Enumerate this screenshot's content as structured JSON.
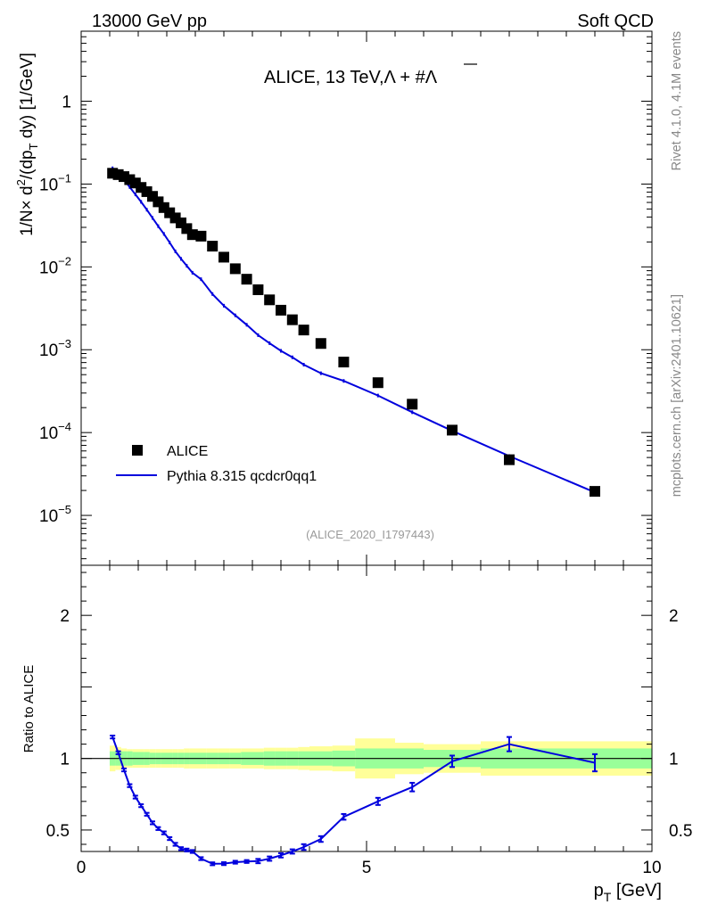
{
  "header": {
    "left": "13000 GeV pp",
    "right": "Soft QCD"
  },
  "side_labels": {
    "rivet": "Rivet 4.1.0,  4.1M events",
    "mcplots": "mcplots.cern.ch [arXiv:2401.10621]"
  },
  "colors": {
    "mc": "#0000dd",
    "data": "#000000",
    "band_inner": "#99ff99",
    "band_outer": "#ffff99"
  },
  "chart_data": {
    "type": "line",
    "title": "ALICE, 13 TeV,",
    "title_particles": "Λ + #Λ",
    "ylabel": "1/N × d²/(dp_T dy) [1/GeV]",
    "ylabel_parts": [
      "1/N",
      "×",
      " d",
      "2",
      "/(dp",
      "T",
      " dy) [1/GeV]"
    ],
    "ratio_ylabel": "Ratio to ALICE",
    "xlabel": "p_T [GeV]",
    "xlabel_parts": [
      "p",
      "T",
      " [GeV]"
    ],
    "analysis_id": "(ALICE_2020_I1797443)",
    "xlim": [
      0,
      10
    ],
    "ylim": [
      2.5e-06,
      7
    ],
    "ratio_ylim": [
      0.35,
      2.35
    ],
    "x_ticks": [
      "0",
      "5",
      "10"
    ],
    "y_ticks": [
      {
        "mant": "10",
        "exp": "−5",
        "v": 1e-05
      },
      {
        "mant": "10",
        "exp": "−4",
        "v": 0.0001
      },
      {
        "mant": "10",
        "exp": "−3",
        "v": 0.001
      },
      {
        "mant": "10",
        "exp": "−2",
        "v": 0.01
      },
      {
        "mant": "10",
        "exp": "−1",
        "v": 0.1
      },
      {
        "mant": "1",
        "exp": "",
        "v": 1
      }
    ],
    "ratio_ticks": [
      {
        "label": "0.5",
        "v": 0.5
      },
      {
        "label": "1",
        "v": 1
      },
      {
        "label": "2",
        "v": 2
      }
    ],
    "legend": [
      {
        "name": "ALICE",
        "kind": "data"
      },
      {
        "name": "Pythia 8.315 qcdcr0qq1",
        "kind": "mc"
      }
    ],
    "data": {
      "name": "ALICE",
      "x": [
        0.55,
        0.65,
        0.75,
        0.85,
        0.95,
        1.05,
        1.15,
        1.25,
        1.35,
        1.45,
        1.55,
        1.65,
        1.75,
        1.85,
        1.95,
        2.1,
        2.3,
        2.5,
        2.7,
        2.9,
        3.1,
        3.3,
        3.5,
        3.7,
        3.9,
        4.2,
        4.6,
        5.2,
        5.8,
        6.5,
        7.5,
        9.0
      ],
      "y": [
        0.135,
        0.13,
        0.123,
        0.113,
        0.103,
        0.091,
        0.081,
        0.071,
        0.061,
        0.052,
        0.045,
        0.039,
        0.034,
        0.029,
        0.0245,
        0.0235,
        0.0178,
        0.0131,
        0.0095,
        0.0071,
        0.0053,
        0.004,
        0.003,
        0.0023,
        0.00173,
        0.00119,
        0.00071,
        0.0004,
        0.00022,
        0.000107,
        4.7e-05,
        1.95e-05
      ]
    },
    "mc": {
      "name": "Pythia 8.315 qcdcr0qq1",
      "x": [
        0.55,
        0.65,
        0.75,
        0.85,
        0.95,
        1.05,
        1.15,
        1.25,
        1.35,
        1.45,
        1.55,
        1.65,
        1.75,
        1.85,
        1.95,
        2.1,
        2.3,
        2.5,
        2.7,
        2.9,
        3.1,
        3.3,
        3.5,
        3.7,
        3.9,
        4.2,
        4.6,
        5.2,
        5.8,
        6.5,
        7.5,
        9.0
      ],
      "y": [
        0.155,
        0.136,
        0.113,
        0.092,
        0.075,
        0.061,
        0.049,
        0.039,
        0.031,
        0.025,
        0.0197,
        0.0154,
        0.0125,
        0.0103,
        0.0085,
        0.0071,
        0.0047,
        0.0034,
        0.0026,
        0.002,
        0.0015,
        0.0012,
        0.00097,
        0.00081,
        0.00066,
        0.00052,
        0.00042,
        0.00028,
        0.000176,
        0.000105,
        5.2e-05,
        1.9e-05
      ]
    },
    "ratio": {
      "x": [
        0.55,
        0.65,
        0.75,
        0.85,
        0.95,
        1.05,
        1.15,
        1.25,
        1.35,
        1.45,
        1.55,
        1.65,
        1.75,
        1.85,
        1.95,
        2.1,
        2.3,
        2.5,
        2.7,
        2.9,
        3.1,
        3.3,
        3.5,
        3.7,
        3.9,
        4.2,
        4.6,
        5.2,
        5.8,
        6.5,
        7.5,
        9.0
      ],
      "y": [
        1.15,
        1.04,
        0.92,
        0.81,
        0.73,
        0.67,
        0.61,
        0.55,
        0.51,
        0.48,
        0.44,
        0.4,
        0.37,
        0.36,
        0.35,
        0.3,
        0.264,
        0.265,
        0.275,
        0.28,
        0.283,
        0.3,
        0.323,
        0.35,
        0.381,
        0.437,
        0.592,
        0.7,
        0.8,
        0.98,
        1.1,
        0.97
      ],
      "err": [
        0.01,
        0.01,
        0.01,
        0.01,
        0.01,
        0.01,
        0.01,
        0.01,
        0.01,
        0.01,
        0.01,
        0.01,
        0.01,
        0.01,
        0.01,
        0.01,
        0.01,
        0.01,
        0.01,
        0.01,
        0.015,
        0.015,
        0.015,
        0.015,
        0.02,
        0.02,
        0.02,
        0.025,
        0.03,
        0.04,
        0.05,
        0.06
      ]
    },
    "bands": {
      "edges": [
        0.5,
        0.6,
        0.7,
        0.8,
        0.9,
        1.0,
        1.1,
        1.2,
        1.3,
        1.4,
        1.5,
        1.6,
        1.7,
        1.8,
        1.9,
        2.0,
        2.2,
        2.4,
        2.6,
        2.8,
        3.0,
        3.2,
        3.4,
        3.6,
        3.8,
        4.0,
        4.4,
        4.8,
        5.5,
        6.0,
        7.0,
        10.0
      ],
      "inner": [
        0.05,
        0.05,
        0.05,
        0.05,
        0.045,
        0.045,
        0.045,
        0.04,
        0.04,
        0.04,
        0.04,
        0.04,
        0.04,
        0.04,
        0.04,
        0.04,
        0.04,
        0.04,
        0.04,
        0.045,
        0.045,
        0.05,
        0.05,
        0.05,
        0.05,
        0.05,
        0.055,
        0.07,
        0.07,
        0.06,
        0.07
      ],
      "outer": [
        0.09,
        0.08,
        0.07,
        0.065,
        0.065,
        0.065,
        0.065,
        0.065,
        0.065,
        0.065,
        0.065,
        0.065,
        0.065,
        0.07,
        0.07,
        0.07,
        0.07,
        0.07,
        0.07,
        0.07,
        0.07,
        0.075,
        0.075,
        0.075,
        0.08,
        0.085,
        0.09,
        0.14,
        0.11,
        0.1,
        0.12
      ]
    }
  }
}
